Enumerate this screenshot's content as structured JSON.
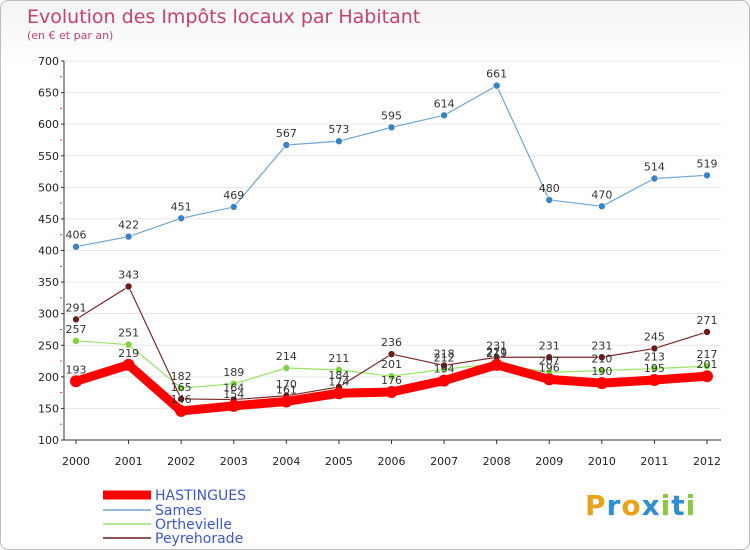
{
  "chart_data": {
    "type": "line",
    "title": "Evolution des Impôts locaux par Habitant",
    "subtitle": "(en € et par an)",
    "categories": [
      "2000",
      "2001",
      "2002",
      "2003",
      "2004",
      "2005",
      "2006",
      "2007",
      "2008",
      "2009",
      "2010",
      "2011",
      "2012"
    ],
    "ylim": [
      100,
      700
    ],
    "yticks": [
      100,
      150,
      200,
      250,
      300,
      350,
      400,
      450,
      500,
      550,
      600,
      650,
      700
    ],
    "series": [
      {
        "name": "HASTINGUES",
        "color": "#ff0000",
        "values": [
          193,
          219,
          146,
          154,
          161,
          174,
          176,
          194,
          219,
          196,
          190,
          195,
          201
        ]
      },
      {
        "name": "Sames",
        "color": "#6ea6d2",
        "values": [
          406,
          422,
          451,
          469,
          567,
          573,
          595,
          614,
          661,
          480,
          470,
          514,
          519
        ]
      },
      {
        "name": "Orthevielle",
        "color": "#99e36a",
        "values": [
          257,
          251,
          182,
          189,
          214,
          211,
          201,
          212,
          221,
          207,
          210,
          213,
          217
        ]
      },
      {
        "name": "Peyrehorade",
        "color": "#6b1b1b",
        "values": [
          291,
          343,
          165,
          164,
          170,
          184,
          236,
          218,
          231,
          231,
          231,
          245,
          271
        ]
      }
    ],
    "legend_position": "bottom-left"
  },
  "logo": {
    "text": "Proxiti",
    "letters": [
      "P",
      "r",
      "o",
      "x",
      "i",
      "t",
      "i"
    ],
    "colors": [
      "#e8a21c",
      "#2f8fd0",
      "#e8a21c",
      "#2f8fd0",
      "#8dc63f",
      "#2f8fd0",
      "#8dc63f"
    ]
  }
}
